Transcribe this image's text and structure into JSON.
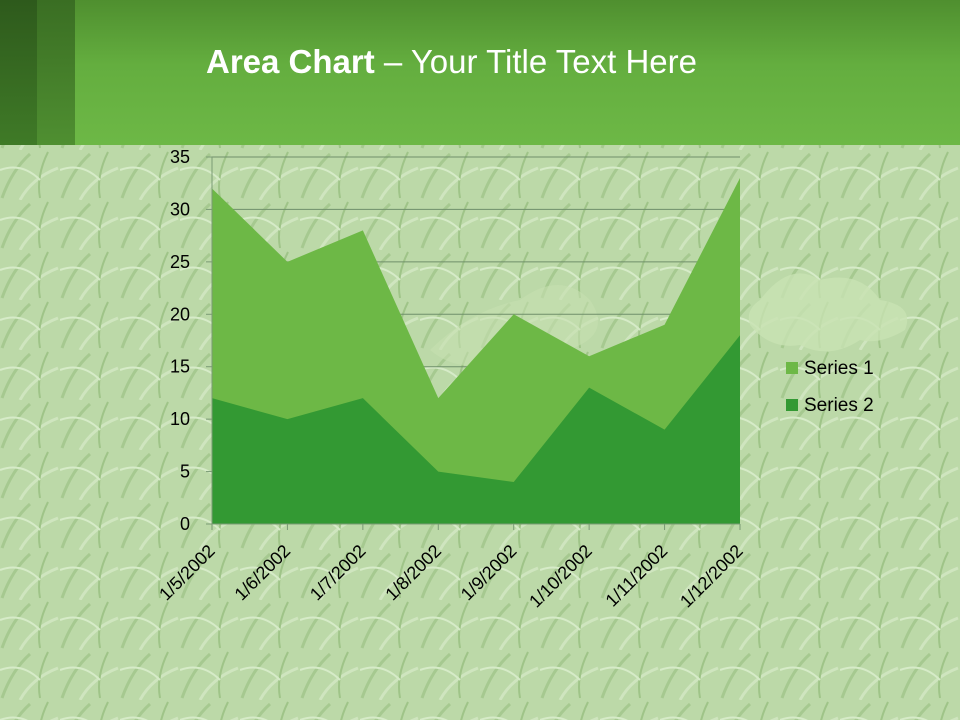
{
  "slide": {
    "title_bold": "Area Chart",
    "title_rest": " – Your Title Text Here"
  },
  "colors": {
    "series1": "#6db846",
    "series2": "#339933",
    "gridline": "#6f8f6a"
  },
  "chart_data": {
    "type": "area",
    "stacked": true,
    "x": [
      "1/5/2002",
      "1/6/2002",
      "1/7/2002",
      "1/8/2002",
      "1/9/2002",
      "1/10/2002",
      "1/11/2002",
      "1/12/2002"
    ],
    "series": [
      {
        "name": "Series 1",
        "values": [
          20,
          15,
          16,
          7,
          16,
          3,
          10,
          15
        ],
        "color": "#6db846"
      },
      {
        "name": "Series 2",
        "values": [
          12,
          10,
          12,
          5,
          4,
          13,
          9,
          18
        ],
        "color": "#339933"
      }
    ],
    "ylim": [
      0,
      35
    ],
    "yticks": [
      0,
      5,
      10,
      15,
      20,
      25,
      30,
      35
    ],
    "grid": true,
    "legend": "right"
  }
}
